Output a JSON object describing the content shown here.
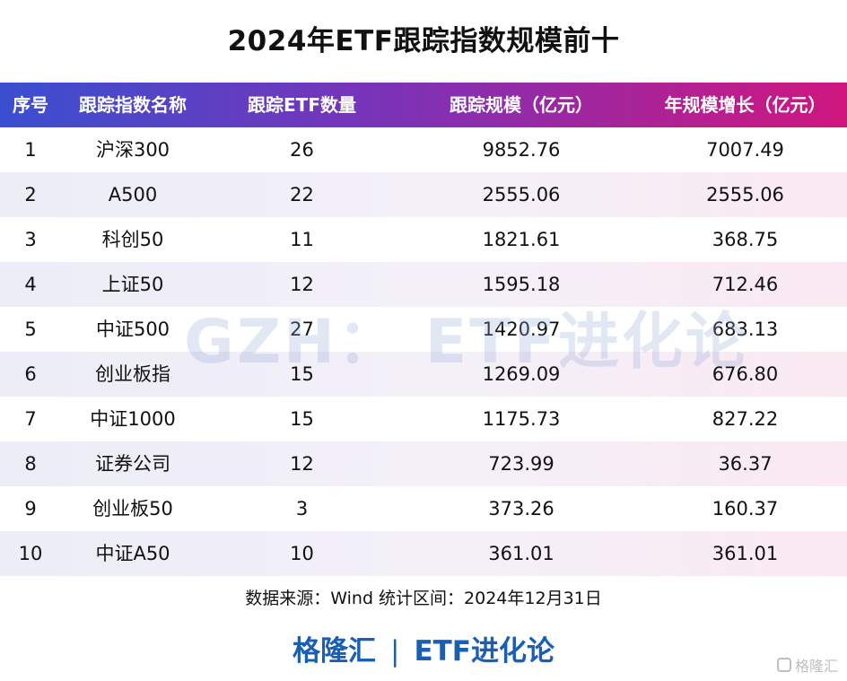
{
  "title": "2024年ETF跟踪指数规模前十",
  "table": {
    "headers": [
      "序号",
      "跟踪指数名称",
      "跟踪ETF数量",
      "跟踪规模（亿元）",
      "年规模增长（亿元）"
    ],
    "rows": [
      [
        "1",
        "沪深300",
        "26",
        "9852.76",
        "7007.49"
      ],
      [
        "2",
        "A500",
        "22",
        "2555.06",
        "2555.06"
      ],
      [
        "3",
        "科创50",
        "11",
        "1821.61",
        "368.75"
      ],
      [
        "4",
        "上证50",
        "12",
        "1595.18",
        "712.46"
      ],
      [
        "5",
        "中证500",
        "27",
        "1420.97",
        "683.13"
      ],
      [
        "6",
        "创业板指",
        "15",
        "1269.09",
        "676.80"
      ],
      [
        "7",
        "中证1000",
        "15",
        "1175.73",
        "827.22"
      ],
      [
        "8",
        "证券公司",
        "12",
        "723.99",
        "36.37"
      ],
      [
        "9",
        "创业板50",
        "3",
        "373.26",
        "160.37"
      ],
      [
        "10",
        "中证A50",
        "10",
        "361.01",
        "361.01"
      ]
    ]
  },
  "source": "数据来源：Wind 统计区间：2024年12月31日",
  "footer": {
    "left": "格隆汇",
    "separator": "|",
    "right": "ETF进化论"
  },
  "watermark": "GZH：  ETF进化论",
  "corner_logo": "格隆汇",
  "colors": {
    "header_gradient_start": "#3a4fd0",
    "header_gradient_mid": "#7a33b8",
    "header_gradient_end": "#d0167e",
    "footer_text": "#1a5fb4"
  },
  "chart_data": {
    "type": "table",
    "title": "2024年ETF跟踪指数规模前十",
    "columns": [
      "序号",
      "跟踪指数名称",
      "跟踪ETF数量",
      "跟踪规模（亿元）",
      "年规模增长（亿元）"
    ],
    "rows": [
      [
        1,
        "沪深300",
        26,
        9852.76,
        7007.49
      ],
      [
        2,
        "A500",
        22,
        2555.06,
        2555.06
      ],
      [
        3,
        "科创50",
        11,
        1821.61,
        368.75
      ],
      [
        4,
        "上证50",
        12,
        1595.18,
        712.46
      ],
      [
        5,
        "中证500",
        27,
        1420.97,
        683.13
      ],
      [
        6,
        "创业板指",
        15,
        1269.09,
        676.8
      ],
      [
        7,
        "中证1000",
        15,
        1175.73,
        827.22
      ],
      [
        8,
        "证券公司",
        12,
        723.99,
        36.37
      ],
      [
        9,
        "创业板50",
        3,
        373.26,
        160.37
      ],
      [
        10,
        "中证A50",
        10,
        361.01,
        361.01
      ]
    ]
  }
}
